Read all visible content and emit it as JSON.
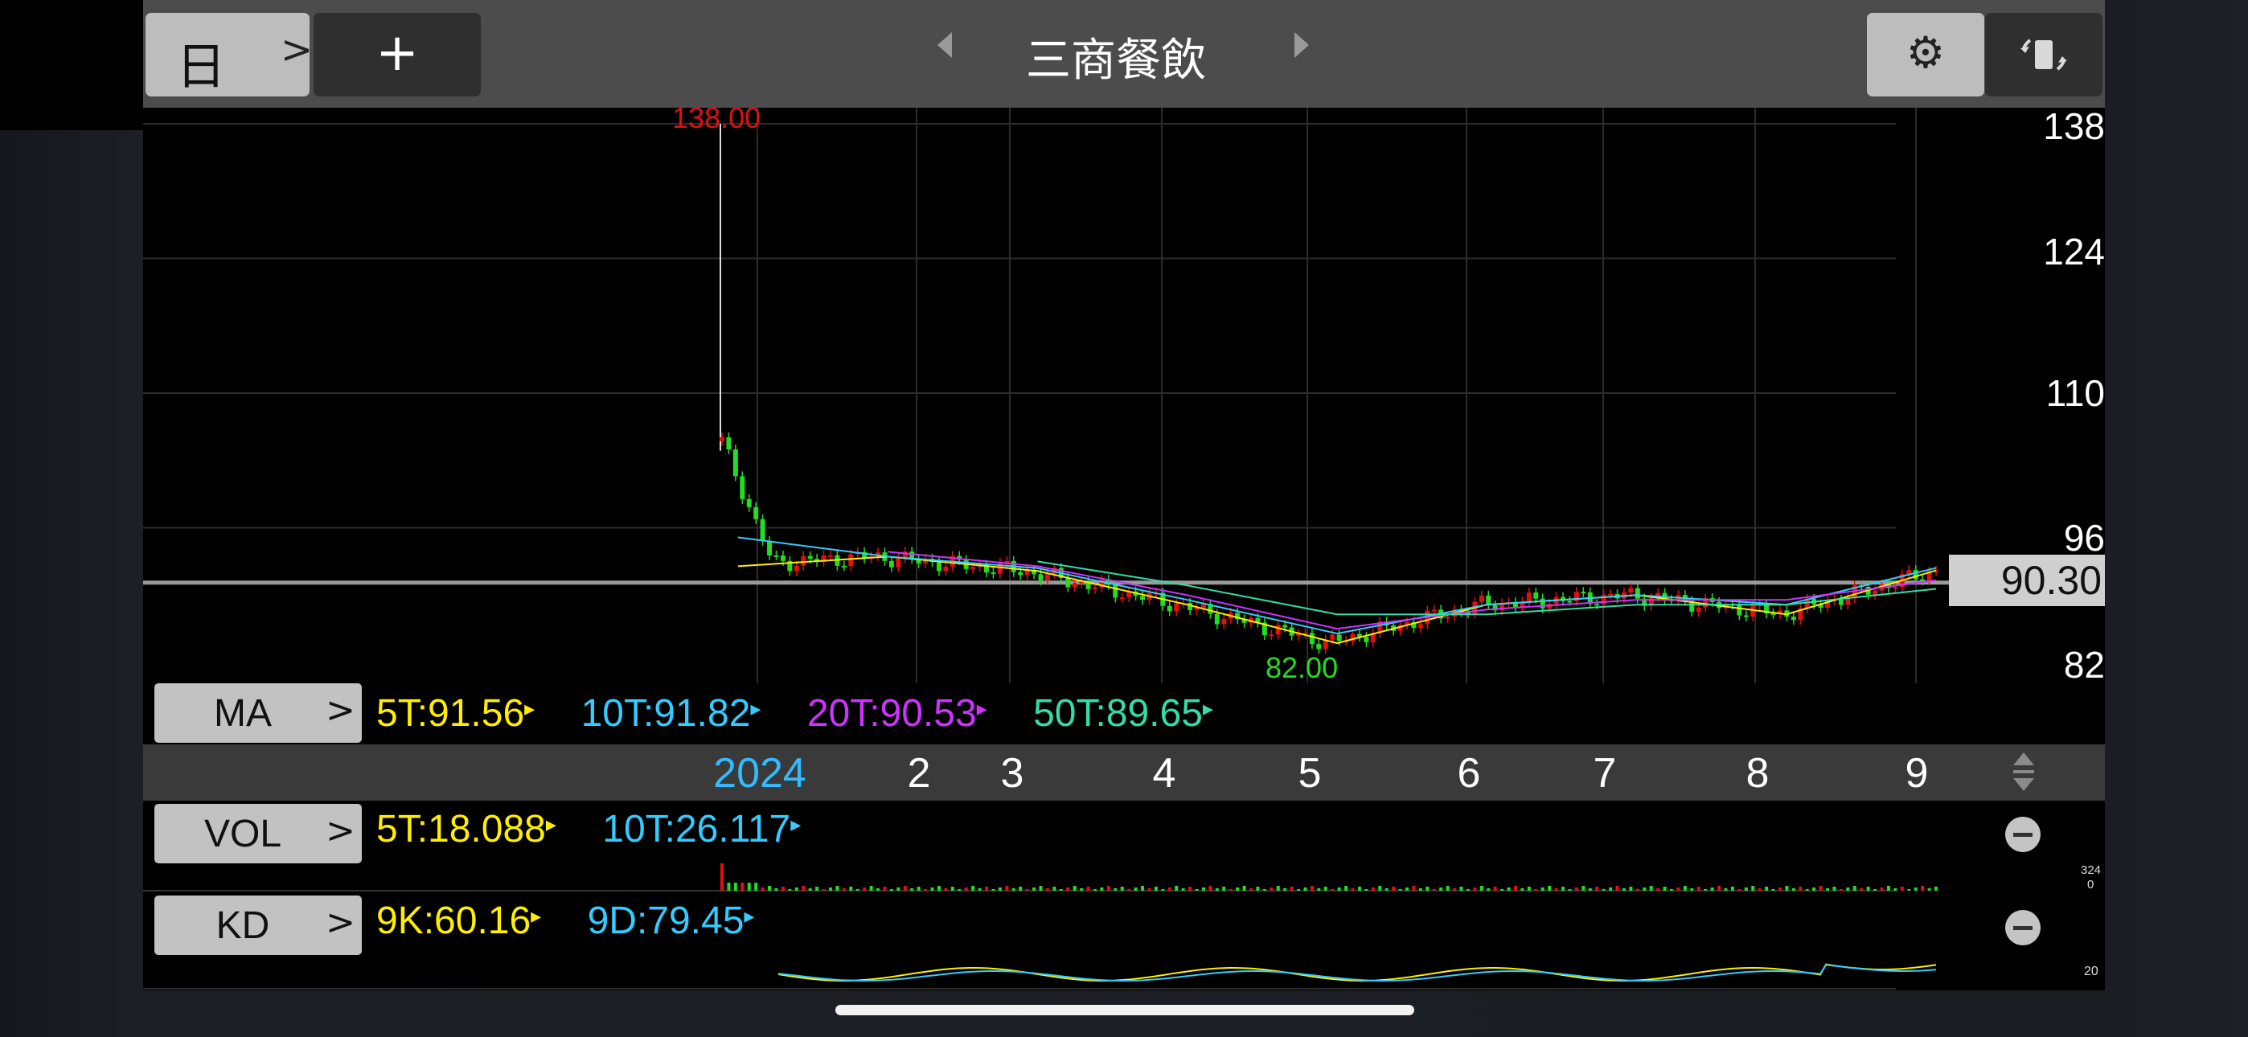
{
  "toolbar": {
    "period_label": "日",
    "period_chevron": ">",
    "add_label": "+",
    "stock_name": "三商餐飲",
    "settings_icon": "gear-icon",
    "rotate_icon": "rotate-screen-icon"
  },
  "main_chart": {
    "price_labels": [
      "138",
      "124",
      "110",
      "96",
      "82"
    ],
    "high_label": "138.00",
    "low_label": "82.00",
    "current_price": "90.30",
    "month_labels": [
      "2024",
      "2",
      "3",
      "4",
      "5",
      "6",
      "7",
      "8",
      "9"
    ],
    "colors": {
      "up": "#e01010",
      "down": "#22dd22",
      "ma5": "#ffee00",
      "ma10": "#33ccff",
      "ma20": "#cc33ff",
      "ma50": "#33ddaa",
      "high": "#e01010",
      "low": "#22dd22",
      "year": "#33bbff"
    }
  },
  "ma_legend": {
    "button": "MA",
    "chevron": ">",
    "ma5": "5T:91.56",
    "ma10": "10T:91.82",
    "ma20": "20T:90.53",
    "ma50": "50T:89.65"
  },
  "vol_legend": {
    "button": "VOL",
    "chevron": ">",
    "v5": "5T:18.088",
    "v10": "10T:26.117",
    "axis_top": "324",
    "axis_bottom": "0"
  },
  "kd_legend": {
    "button": "KD",
    "chevron": ">",
    "k": "9K:60.16",
    "d": "9D:79.45",
    "axis_label": "20"
  },
  "chart_data": {
    "type": "line",
    "title": "",
    "x": [
      "2024-01",
      "2024-02",
      "2024-03",
      "2024-04",
      "2024-05",
      "2024-06",
      "2024-07",
      "2024-08",
      "2024-09"
    ],
    "series": [
      {
        "name": "5T",
        "values": [
          92,
          93,
          91.5,
          88,
          84,
          88,
          89,
          87,
          91.56
        ]
      },
      {
        "name": "10T",
        "values": [
          95,
          93,
          91.8,
          88.5,
          85,
          88,
          89,
          88,
          91.82
        ]
      },
      {
        "name": "20T",
        "values": [
          null,
          93.5,
          92,
          89,
          85.5,
          87.5,
          88.5,
          88.5,
          90.53
        ]
      },
      {
        "name": "50T",
        "values": [
          null,
          null,
          92.5,
          90,
          87,
          87,
          88,
          88,
          89.65
        ]
      }
    ],
    "ylim": [
      82,
      138
    ],
    "high": 138.0,
    "low": 82.0,
    "last": 90.3
  }
}
